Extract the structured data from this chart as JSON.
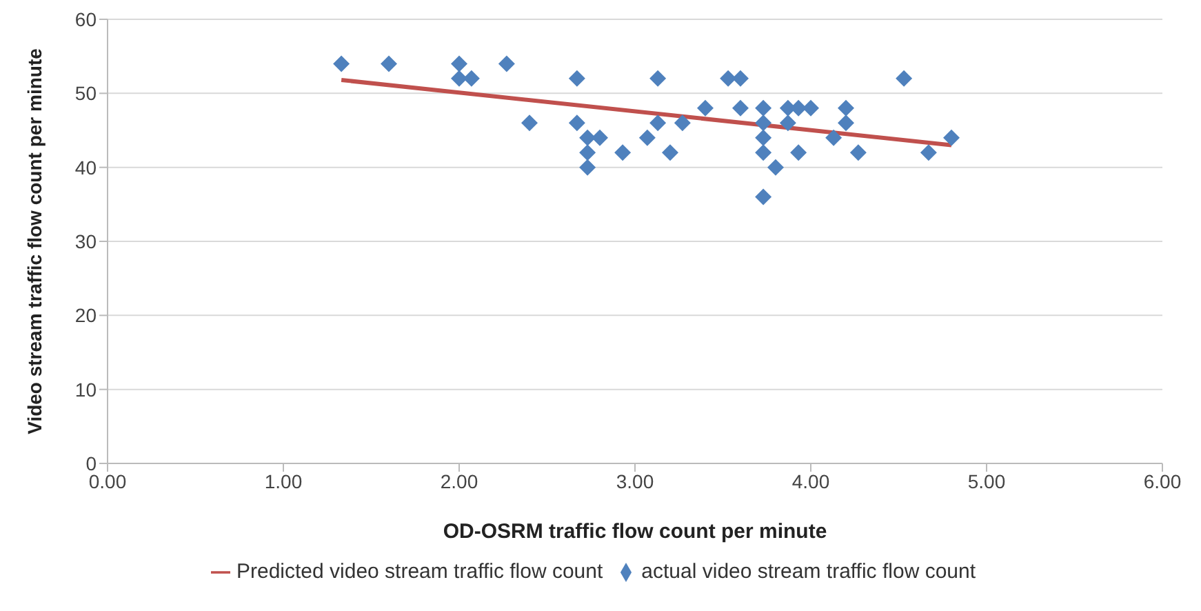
{
  "chart_data": {
    "type": "scatter",
    "xlabel": "OD-OSRM traffic flow count per minute",
    "ylabel": "Video stream traffic flow count per minute",
    "xlim": [
      0,
      6
    ],
    "xticks": [
      {
        "value": 0,
        "label": "0.00"
      },
      {
        "value": 1,
        "label": "1.00"
      },
      {
        "value": 2,
        "label": "2.00"
      },
      {
        "value": 3,
        "label": "3.00"
      },
      {
        "value": 4,
        "label": "4.00"
      },
      {
        "value": 5,
        "label": "5.00"
      },
      {
        "value": 6,
        "label": "6.00"
      }
    ],
    "ylim": [
      0,
      60
    ],
    "yticks": [
      0,
      10,
      20,
      30,
      40,
      50,
      60
    ],
    "grid": "y",
    "legend": "bottom",
    "series": [
      {
        "name": "Predicted video stream traffic flow count",
        "type": "line",
        "color": "#c0504d",
        "marker": "none",
        "x": [
          1.33,
          4.8
        ],
        "values": [
          51.8,
          43
        ]
      },
      {
        "name": "actual video stream traffic flow count",
        "type": "scatter",
        "color": "#4f81bd",
        "marker": "diamond",
        "x": [
          1.33,
          1.6,
          2.0,
          2.0,
          2.07,
          2.27,
          2.4,
          2.67,
          2.67,
          2.73,
          2.8,
          2.73,
          2.73,
          2.93,
          3.07,
          3.13,
          3.13,
          3.2,
          3.27,
          3.4,
          3.53,
          3.6,
          3.6,
          3.73,
          3.73,
          3.73,
          3.73,
          3.73,
          3.8,
          3.87,
          3.87,
          3.93,
          3.93,
          4.0,
          4.13,
          4.2,
          4.2,
          4.27,
          4.53,
          4.67,
          4.8
        ],
        "values": [
          54,
          54,
          54,
          52,
          52,
          54,
          46,
          52,
          46,
          44,
          44,
          42,
          40,
          42,
          44,
          52,
          46,
          42,
          46,
          48,
          52,
          52,
          48,
          48,
          46,
          44,
          42,
          36,
          40,
          48,
          46,
          48,
          42,
          48,
          44,
          48,
          46,
          42,
          52,
          42,
          44
        ]
      }
    ]
  }
}
